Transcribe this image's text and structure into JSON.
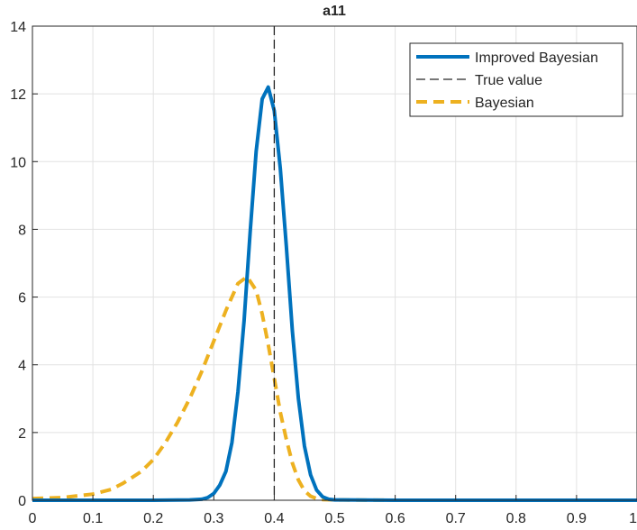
{
  "chart_data": {
    "type": "line",
    "title": "a11",
    "xlabel": "",
    "ylabel": "",
    "xlim": [
      0,
      1
    ],
    "ylim": [
      0,
      14
    ],
    "xticks": [
      "0",
      "0.1",
      "0.2",
      "0.3",
      "0.4",
      "0.5",
      "0.6",
      "0.7",
      "0.8",
      "0.9",
      "1"
    ],
    "yticks": [
      "0",
      "2",
      "4",
      "6",
      "8",
      "10",
      "12",
      "14"
    ],
    "grid": true,
    "legend_position": "top-right",
    "series": [
      {
        "name": "Improved Bayesian",
        "color": "#0072BD",
        "style": "solid",
        "points": [
          [
            0,
            0
          ],
          [
            0.1,
            0
          ],
          [
            0.2,
            0
          ],
          [
            0.26,
            0.01
          ],
          [
            0.28,
            0.03
          ],
          [
            0.29,
            0.08
          ],
          [
            0.3,
            0.2
          ],
          [
            0.31,
            0.45
          ],
          [
            0.32,
            0.85
          ],
          [
            0.33,
            1.7
          ],
          [
            0.34,
            3.2
          ],
          [
            0.35,
            5.3
          ],
          [
            0.36,
            7.9
          ],
          [
            0.37,
            10.3
          ],
          [
            0.38,
            11.85
          ],
          [
            0.39,
            12.2
          ],
          [
            0.4,
            11.5
          ],
          [
            0.41,
            9.8
          ],
          [
            0.42,
            7.5
          ],
          [
            0.43,
            5.0
          ],
          [
            0.44,
            3.0
          ],
          [
            0.45,
            1.6
          ],
          [
            0.46,
            0.75
          ],
          [
            0.47,
            0.3
          ],
          [
            0.48,
            0.1
          ],
          [
            0.49,
            0.03
          ],
          [
            0.5,
            0.01
          ],
          [
            0.6,
            0
          ],
          [
            0.8,
            0
          ],
          [
            1,
            0
          ]
        ]
      },
      {
        "name": "True value",
        "color": "#262626",
        "style": "dashed",
        "x": 0.4
      },
      {
        "name": "Bayesian",
        "color": "#EDB120",
        "style": "dashed",
        "points": [
          [
            0,
            0.05
          ],
          [
            0.05,
            0.08
          ],
          [
            0.1,
            0.18
          ],
          [
            0.13,
            0.32
          ],
          [
            0.15,
            0.5
          ],
          [
            0.18,
            0.85
          ],
          [
            0.2,
            1.2
          ],
          [
            0.22,
            1.7
          ],
          [
            0.24,
            2.3
          ],
          [
            0.26,
            3.0
          ],
          [
            0.28,
            3.8
          ],
          [
            0.3,
            4.7
          ],
          [
            0.32,
            5.6
          ],
          [
            0.34,
            6.4
          ],
          [
            0.355,
            6.6
          ],
          [
            0.37,
            6.2
          ],
          [
            0.38,
            5.5
          ],
          [
            0.39,
            4.6
          ],
          [
            0.4,
            3.6
          ],
          [
            0.41,
            2.6
          ],
          [
            0.42,
            1.8
          ],
          [
            0.43,
            1.1
          ],
          [
            0.44,
            0.6
          ],
          [
            0.45,
            0.28
          ],
          [
            0.46,
            0.12
          ],
          [
            0.47,
            0.05
          ],
          [
            0.48,
            0.02
          ],
          [
            0.5,
            0.01
          ],
          [
            0.6,
            0
          ],
          [
            0.8,
            0
          ],
          [
            1,
            0
          ]
        ]
      }
    ]
  }
}
